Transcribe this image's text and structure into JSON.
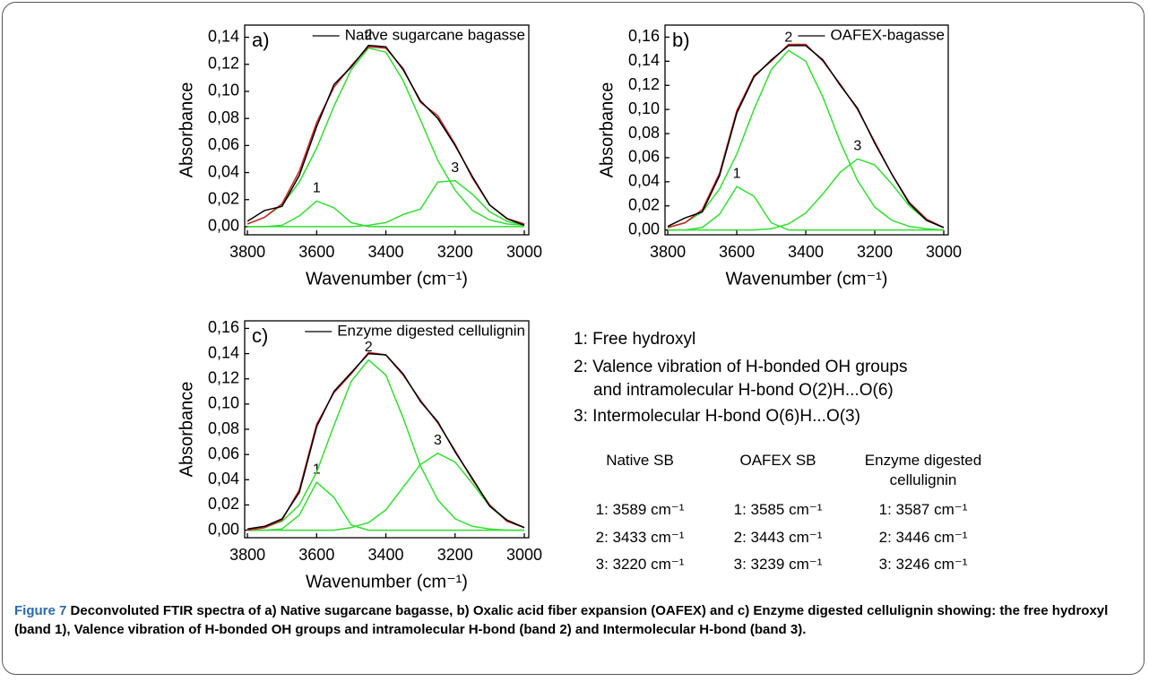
{
  "chart_data": [
    {
      "type": "line",
      "panel": "a)",
      "xlabel": "Wavenumber (cm⁻¹)",
      "ylabel": "Absorbance",
      "xlim": [
        3808,
        2987
      ],
      "ylim": [
        -0.006,
        0.149
      ],
      "xticks": [
        3800,
        3600,
        3400,
        3200,
        3000
      ],
      "yticks": [
        {
          "value": 0,
          "label": "0,00"
        },
        {
          "value": 0.02,
          "label": "0,02"
        },
        {
          "value": 0.04,
          "label": "0,04"
        },
        {
          "value": 0.06,
          "label": "0,06"
        },
        {
          "value": 0.08,
          "label": "0,08"
        },
        {
          "value": 0.1,
          "label": "0,10"
        },
        {
          "value": 0.12,
          "label": "0,12"
        },
        {
          "value": 0.14,
          "label": "0,14"
        }
      ],
      "x": [
        3800,
        3750,
        3700,
        3650,
        3600,
        3550,
        3500,
        3450,
        3400,
        3350,
        3300,
        3250,
        3200,
        3150,
        3100,
        3050,
        3000
      ],
      "series": [
        {
          "label": "1",
          "color": "#33dd33",
          "values": [
            0,
            0,
            0.001,
            0.008,
            0.019,
            0.014,
            0.003,
            0,
            0,
            0,
            0,
            0,
            0,
            0,
            0,
            0,
            0
          ]
        },
        {
          "label": "2",
          "color": "#33dd33",
          "values": [
            0.002,
            0.007,
            0.016,
            0.033,
            0.058,
            0.089,
            0.116,
            0.132,
            0.129,
            0.108,
            0.079,
            0.049,
            0.027,
            0.012,
            0.005,
            0.002,
            0.001
          ]
        },
        {
          "label": "3",
          "color": "#33dd33",
          "values": [
            0,
            0,
            0,
            0,
            0,
            0,
            0,
            0.001,
            0.003,
            0.009,
            0.013,
            0.033,
            0.034,
            0.024,
            0.011,
            0.004,
            0.001
          ]
        },
        {
          "color": "#cc2222",
          "values": [
            0.002,
            0.007,
            0.017,
            0.041,
            0.077,
            0.103,
            0.119,
            0.133,
            0.132,
            0.117,
            0.092,
            0.082,
            0.061,
            0.036,
            0.016,
            0.006,
            0.002
          ]
        },
        {
          "name": "Native sugarcane bagasse",
          "color": "#000000",
          "values": [
            0.004,
            0.012,
            0.015,
            0.038,
            0.074,
            0.105,
            0.118,
            0.134,
            0.133,
            0.116,
            0.093,
            0.08,
            0.06,
            0.037,
            0.016,
            0.006,
            0.001
          ]
        }
      ]
    },
    {
      "type": "line",
      "panel": "b)",
      "xlabel": "Wavenumber (cm⁻¹)",
      "ylabel": "Absorbance",
      "xlim": [
        3808,
        2987
      ],
      "ylim": [
        -0.004,
        0.17
      ],
      "xticks": [
        3800,
        3600,
        3400,
        3200,
        3000
      ],
      "yticks": [
        {
          "value": 0,
          "label": "0,00"
        },
        {
          "value": 0.02,
          "label": "0,02"
        },
        {
          "value": 0.04,
          "label": "0,04"
        },
        {
          "value": 0.06,
          "label": "0,06"
        },
        {
          "value": 0.08,
          "label": "0,08"
        },
        {
          "value": 0.1,
          "label": "0,10"
        },
        {
          "value": 0.12,
          "label": "0,12"
        },
        {
          "value": 0.14,
          "label": "0,14"
        },
        {
          "value": 0.16,
          "label": "0,16"
        }
      ],
      "x": [
        3800,
        3750,
        3700,
        3650,
        3600,
        3550,
        3500,
        3450,
        3400,
        3350,
        3300,
        3250,
        3200,
        3150,
        3100,
        3050,
        3000
      ],
      "series": [
        {
          "label": "1",
          "color": "#33dd33",
          "values": [
            0,
            0,
            0.002,
            0.013,
            0.036,
            0.028,
            0.006,
            0,
            0,
            0,
            0,
            0,
            0,
            0,
            0,
            0,
            0
          ]
        },
        {
          "label": "2",
          "color": "#33dd33",
          "values": [
            0.002,
            0.006,
            0.015,
            0.034,
            0.063,
            0.1,
            0.133,
            0.149,
            0.14,
            0.11,
            0.073,
            0.041,
            0.019,
            0.008,
            0.003,
            0.001,
            0
          ]
        },
        {
          "label": "3",
          "color": "#33dd33",
          "values": [
            0,
            0,
            0,
            0,
            0,
            0,
            0.001,
            0.005,
            0.014,
            0.03,
            0.048,
            0.059,
            0.054,
            0.038,
            0.02,
            0.008,
            0.002
          ]
        },
        {
          "color": "#cc2222",
          "values": [
            0.002,
            0.006,
            0.017,
            0.047,
            0.099,
            0.128,
            0.14,
            0.154,
            0.154,
            0.14,
            0.121,
            0.1,
            0.073,
            0.046,
            0.023,
            0.009,
            0.002
          ]
        },
        {
          "name": "OAFEX-bagasse",
          "color": "#000000",
          "values": [
            0.003,
            0.01,
            0.015,
            0.045,
            0.097,
            0.127,
            0.141,
            0.153,
            0.153,
            0.141,
            0.12,
            0.101,
            0.072,
            0.046,
            0.022,
            0.008,
            0.002
          ]
        }
      ]
    },
    {
      "type": "line",
      "panel": "c)",
      "xlabel": "Wavenumber (cm⁻¹)",
      "ylabel": "Absorbance",
      "xlim": [
        3808,
        2987
      ],
      "ylim": [
        -0.006,
        0.166
      ],
      "xticks": [
        3800,
        3600,
        3400,
        3200,
        3000
      ],
      "yticks": [
        {
          "value": 0,
          "label": "0,00"
        },
        {
          "value": 0.02,
          "label": "0,02"
        },
        {
          "value": 0.04,
          "label": "0,04"
        },
        {
          "value": 0.06,
          "label": "0,06"
        },
        {
          "value": 0.08,
          "label": "0,08"
        },
        {
          "value": 0.1,
          "label": "0,10"
        },
        {
          "value": 0.12,
          "label": "0,12"
        },
        {
          "value": 0.14,
          "label": "0,14"
        },
        {
          "value": 0.16,
          "label": "0,16"
        }
      ],
      "x": [
        3800,
        3750,
        3700,
        3650,
        3600,
        3550,
        3500,
        3450,
        3400,
        3350,
        3300,
        3250,
        3200,
        3150,
        3100,
        3050,
        3000
      ],
      "series": [
        {
          "label": "1",
          "color": "#33dd33",
          "values": [
            0,
            0,
            0.001,
            0.012,
            0.038,
            0.026,
            0.004,
            0,
            0,
            0,
            0,
            0,
            0,
            0,
            0,
            0,
            0
          ]
        },
        {
          "label": "2",
          "color": "#33dd33",
          "values": [
            0,
            0.002,
            0.007,
            0.02,
            0.046,
            0.083,
            0.118,
            0.135,
            0.123,
            0.089,
            0.051,
            0.024,
            0.009,
            0.003,
            0.001,
            0,
            0
          ]
        },
        {
          "label": "3",
          "color": "#33dd33",
          "values": [
            0,
            0,
            0,
            0,
            0,
            0,
            0.002,
            0.006,
            0.016,
            0.034,
            0.052,
            0.061,
            0.054,
            0.037,
            0.019,
            0.007,
            0.002
          ]
        },
        {
          "color": "#cc2222",
          "values": [
            0,
            0.002,
            0.008,
            0.032,
            0.084,
            0.109,
            0.124,
            0.141,
            0.139,
            0.123,
            0.103,
            0.085,
            0.063,
            0.04,
            0.02,
            0.007,
            0.002
          ]
        },
        {
          "name": "Enzyme digested cellulignin",
          "color": "#000000",
          "values": [
            0.001,
            0.003,
            0.009,
            0.03,
            0.082,
            0.11,
            0.125,
            0.14,
            0.139,
            0.124,
            0.102,
            0.086,
            0.062,
            0.041,
            0.019,
            0.008,
            0.002
          ]
        }
      ]
    }
  ],
  "notes": [
    "1: Free hydroxyl",
    "2: Valence vibration of H-bonded OH groups",
    "and intramolecular H-bond O(2)H...O(6)",
    "3: Intermolecular H-bond O(6)H...O(3)"
  ],
  "table": {
    "header": [
      "Native SB",
      "OAFEX SB",
      "Enzyme digested cellulignin"
    ],
    "rows": [
      [
        "1: 3589 cm⁻¹",
        "1: 3585 cm⁻¹",
        "1: 3587 cm⁻¹"
      ],
      [
        "2: 3433 cm⁻¹",
        "2: 3443 cm⁻¹",
        "2: 3446 cm⁻¹"
      ],
      [
        "3: 3220 cm⁻¹",
        "3: 3239 cm⁻¹",
        "3: 3246 cm⁻¹"
      ]
    ]
  },
  "caption": {
    "label": "Figure 7",
    "text": "Deconvoluted FTIR spectra of a) Native sugarcane bagasse, b) Oxalic acid fiber expansion (OAFEX) and c) Enzyme digested cellulignin showing: the free hydroxyl (band 1), Valence vibration of H-bonded OH groups and intramolecular H-bond (band 2) and Intermolecular H-bond (band 3)."
  }
}
